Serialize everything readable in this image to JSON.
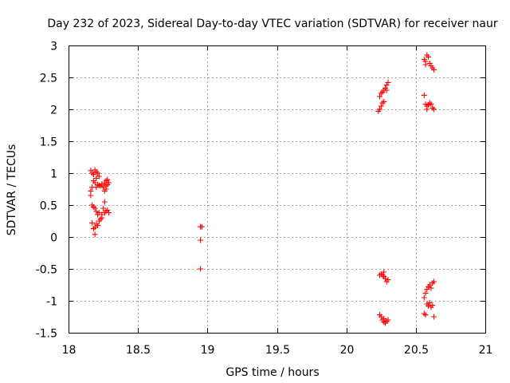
{
  "chart_data": {
    "type": "scatter",
    "title": "Day 232 of 2023, Sidereal Day-to-day VTEC variation (SDTVAR) for receiver naur",
    "xlabel": "GPS time / hours",
    "ylabel": "SDTVAR / TECUs",
    "xlim": [
      18,
      21
    ],
    "ylim": [
      -1.5,
      3
    ],
    "xticks": [
      "18",
      "18.5",
      "19",
      "19.5",
      "20",
      "20.5",
      "21"
    ],
    "yticks": [
      "-1.5",
      "-1",
      "-0.5",
      "0",
      "0.5",
      "1",
      "1.5",
      "2",
      "2.5",
      "3"
    ],
    "grid": true,
    "marker": "+",
    "color": "#ff0000",
    "series": [
      {
        "name": "SDTVAR",
        "points": [
          [
            18.16,
            1.04
          ],
          [
            18.17,
            1.0
          ],
          [
            18.18,
            0.98
          ],
          [
            18.19,
            1.05
          ],
          [
            18.2,
            1.02
          ],
          [
            18.21,
            1.0
          ],
          [
            18.22,
            0.95
          ],
          [
            18.2,
            0.92
          ],
          [
            18.18,
            0.88
          ],
          [
            18.19,
            0.85
          ],
          [
            18.21,
            0.82
          ],
          [
            18.23,
            0.8
          ],
          [
            18.25,
            0.78
          ],
          [
            18.27,
            0.8
          ],
          [
            18.28,
            0.82
          ],
          [
            18.26,
            0.85
          ],
          [
            18.24,
            0.83
          ],
          [
            18.22,
            0.81
          ],
          [
            18.2,
            0.78
          ],
          [
            18.27,
            0.88
          ],
          [
            18.28,
            0.9
          ],
          [
            18.29,
            0.85
          ],
          [
            18.27,
            0.75
          ],
          [
            18.26,
            0.72
          ],
          [
            18.17,
            0.78
          ],
          [
            18.16,
            0.72
          ],
          [
            18.16,
            0.65
          ],
          [
            18.17,
            0.5
          ],
          [
            18.18,
            0.47
          ],
          [
            18.19,
            0.45
          ],
          [
            18.2,
            0.4
          ],
          [
            18.21,
            0.35
          ],
          [
            18.22,
            0.38
          ],
          [
            18.24,
            0.35
          ],
          [
            18.26,
            0.38
          ],
          [
            18.27,
            0.4
          ],
          [
            18.28,
            0.42
          ],
          [
            18.29,
            0.38
          ],
          [
            18.25,
            0.45
          ],
          [
            18.26,
            0.55
          ],
          [
            18.24,
            0.3
          ],
          [
            18.23,
            0.28
          ],
          [
            18.22,
            0.25
          ],
          [
            18.2,
            0.2
          ],
          [
            18.19,
            0.15
          ],
          [
            18.18,
            0.13
          ],
          [
            18.17,
            0.22
          ],
          [
            18.19,
            0.04
          ],
          [
            18.21,
            0.18
          ],
          [
            18.95,
            0.16
          ],
          [
            18.96,
            0.16
          ],
          [
            18.95,
            -0.05
          ],
          [
            18.95,
            -0.5
          ],
          [
            20.23,
            1.97
          ],
          [
            20.24,
            2.0
          ],
          [
            20.25,
            2.05
          ],
          [
            20.26,
            2.1
          ],
          [
            20.27,
            2.12
          ],
          [
            20.24,
            2.2
          ],
          [
            20.25,
            2.25
          ],
          [
            20.26,
            2.27
          ],
          [
            20.27,
            2.3
          ],
          [
            20.28,
            2.33
          ],
          [
            20.29,
            2.38
          ],
          [
            20.3,
            2.42
          ],
          [
            20.29,
            2.3
          ],
          [
            20.24,
            -0.6
          ],
          [
            20.25,
            -0.58
          ],
          [
            20.26,
            -0.6
          ],
          [
            20.27,
            -0.62
          ],
          [
            20.28,
            -0.65
          ],
          [
            20.29,
            -0.7
          ],
          [
            20.3,
            -0.67
          ],
          [
            20.27,
            -0.55
          ],
          [
            20.24,
            -1.22
          ],
          [
            20.25,
            -1.25
          ],
          [
            20.26,
            -1.3
          ],
          [
            20.27,
            -1.33
          ],
          [
            20.28,
            -1.35
          ],
          [
            20.29,
            -1.32
          ],
          [
            20.3,
            -1.3
          ],
          [
            20.27,
            -1.28
          ],
          [
            20.56,
            2.78
          ],
          [
            20.57,
            2.75
          ],
          [
            20.58,
            2.85
          ],
          [
            20.59,
            2.82
          ],
          [
            20.6,
            2.72
          ],
          [
            20.61,
            2.68
          ],
          [
            20.62,
            2.65
          ],
          [
            20.63,
            2.62
          ],
          [
            20.57,
            2.7
          ],
          [
            20.56,
            2.22
          ],
          [
            20.57,
            2.08
          ],
          [
            20.58,
            2.05
          ],
          [
            20.59,
            2.07
          ],
          [
            20.6,
            2.1
          ],
          [
            20.61,
            2.08
          ],
          [
            20.62,
            2.02
          ],
          [
            20.63,
            2.0
          ],
          [
            20.58,
            2.0
          ],
          [
            20.56,
            -0.95
          ],
          [
            20.57,
            -0.88
          ],
          [
            20.58,
            -0.82
          ],
          [
            20.59,
            -0.78
          ],
          [
            20.6,
            -0.75
          ],
          [
            20.61,
            -0.8
          ],
          [
            20.62,
            -0.72
          ],
          [
            20.63,
            -0.7
          ],
          [
            20.58,
            -1.05
          ],
          [
            20.59,
            -1.08
          ],
          [
            20.6,
            -1.03
          ],
          [
            20.61,
            -1.1
          ],
          [
            20.62,
            -1.07
          ],
          [
            20.63,
            -1.25
          ],
          [
            20.56,
            -1.2
          ],
          [
            20.57,
            -1.22
          ]
        ]
      }
    ]
  }
}
